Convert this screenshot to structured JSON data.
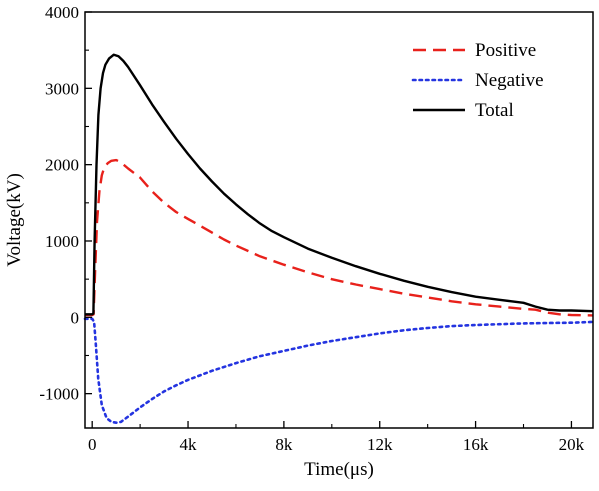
{
  "chart_data": {
    "type": "line",
    "title": "",
    "xlabel": "Time(μs)",
    "ylabel": "Voltage(kV)",
    "xlim": [
      -300,
      20900
    ],
    "ylim": [
      -1450,
      4000
    ],
    "x_ticks": [
      0,
      4000,
      8000,
      12000,
      16000,
      20000
    ],
    "x_tick_labels": [
      "0",
      "4k",
      "8k",
      "12k",
      "16k",
      "20k"
    ],
    "y_ticks": [
      -1000,
      0,
      1000,
      2000,
      3000,
      4000
    ],
    "y_tick_labels": [
      "-1000",
      "0",
      "1000",
      "2000",
      "3000",
      "4000"
    ],
    "grid": false,
    "legend_position": "top-right",
    "series": [
      {
        "name": "Positive",
        "color": "#e8211b",
        "style": "dashed",
        "points": [
          [
            -300,
            30
          ],
          [
            0,
            30
          ],
          [
            60,
            40
          ],
          [
            120,
            600
          ],
          [
            200,
            1250
          ],
          [
            300,
            1650
          ],
          [
            400,
            1860
          ],
          [
            500,
            1960
          ],
          [
            650,
            2020
          ],
          [
            800,
            2050
          ],
          [
            1000,
            2060
          ],
          [
            1200,
            2030
          ],
          [
            1500,
            1950
          ],
          [
            2000,
            1830
          ],
          [
            2500,
            1650
          ],
          [
            3000,
            1500
          ],
          [
            3500,
            1380
          ],
          [
            4000,
            1290
          ],
          [
            4500,
            1200
          ],
          [
            5000,
            1110
          ],
          [
            5500,
            1020
          ],
          [
            6000,
            940
          ],
          [
            6500,
            870
          ],
          [
            7000,
            800
          ],
          [
            8000,
            690
          ],
          [
            9000,
            590
          ],
          [
            10000,
            500
          ],
          [
            11000,
            430
          ],
          [
            12000,
            370
          ],
          [
            13000,
            310
          ],
          [
            14000,
            260
          ],
          [
            15000,
            210
          ],
          [
            16000,
            170
          ],
          [
            17000,
            140
          ],
          [
            18000,
            110
          ],
          [
            18500,
            100
          ],
          [
            19000,
            60
          ],
          [
            19500,
            40
          ],
          [
            20000,
            30
          ],
          [
            20900,
            25
          ]
        ]
      },
      {
        "name": "Negative",
        "color": "#2434e0",
        "style": "dotted",
        "points": [
          [
            -300,
            -20
          ],
          [
            0,
            -20
          ],
          [
            80,
            -60
          ],
          [
            150,
            -350
          ],
          [
            250,
            -800
          ],
          [
            400,
            -1150
          ],
          [
            600,
            -1320
          ],
          [
            800,
            -1370
          ],
          [
            1000,
            -1380
          ],
          [
            1200,
            -1370
          ],
          [
            1500,
            -1300
          ],
          [
            2000,
            -1180
          ],
          [
            2500,
            -1070
          ],
          [
            3000,
            -970
          ],
          [
            3500,
            -890
          ],
          [
            4000,
            -820
          ],
          [
            5000,
            -700
          ],
          [
            6000,
            -600
          ],
          [
            7000,
            -510
          ],
          [
            8000,
            -440
          ],
          [
            9000,
            -370
          ],
          [
            10000,
            -310
          ],
          [
            11000,
            -260
          ],
          [
            12000,
            -210
          ],
          [
            13000,
            -170
          ],
          [
            14000,
            -140
          ],
          [
            15000,
            -115
          ],
          [
            16000,
            -100
          ],
          [
            17000,
            -90
          ],
          [
            18000,
            -80
          ],
          [
            19000,
            -75
          ],
          [
            20000,
            -70
          ],
          [
            20900,
            -60
          ]
        ]
      },
      {
        "name": "Total",
        "color": "#000000",
        "style": "solid",
        "points": [
          [
            -300,
            40
          ],
          [
            0,
            40
          ],
          [
            50,
            50
          ],
          [
            100,
            1000
          ],
          [
            180,
            2000
          ],
          [
            260,
            2650
          ],
          [
            350,
            3000
          ],
          [
            450,
            3200
          ],
          [
            550,
            3310
          ],
          [
            700,
            3390
          ],
          [
            900,
            3440
          ],
          [
            1100,
            3420
          ],
          [
            1300,
            3360
          ],
          [
            1500,
            3280
          ],
          [
            2000,
            3040
          ],
          [
            2500,
            2790
          ],
          [
            3000,
            2560
          ],
          [
            3500,
            2340
          ],
          [
            4000,
            2140
          ],
          [
            4500,
            1950
          ],
          [
            5000,
            1780
          ],
          [
            5500,
            1620
          ],
          [
            6000,
            1480
          ],
          [
            6500,
            1350
          ],
          [
            7000,
            1230
          ],
          [
            7500,
            1130
          ],
          [
            8000,
            1050
          ],
          [
            9000,
            900
          ],
          [
            10000,
            780
          ],
          [
            11000,
            670
          ],
          [
            12000,
            570
          ],
          [
            13000,
            480
          ],
          [
            14000,
            400
          ],
          [
            15000,
            330
          ],
          [
            16000,
            270
          ],
          [
            17000,
            230
          ],
          [
            17500,
            210
          ],
          [
            18000,
            190
          ],
          [
            18500,
            140
          ],
          [
            19000,
            100
          ],
          [
            19500,
            90
          ],
          [
            20000,
            90
          ],
          [
            20900,
            80
          ]
        ]
      }
    ]
  }
}
